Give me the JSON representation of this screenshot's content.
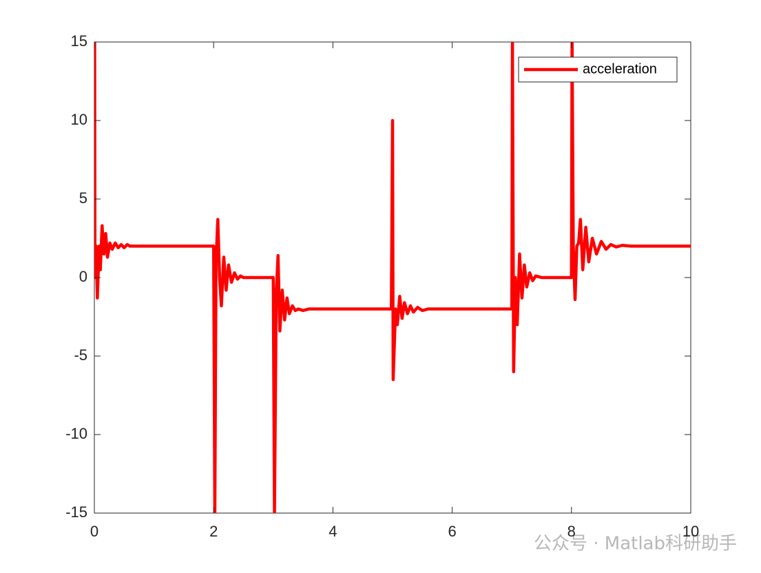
{
  "chart_data": {
    "type": "line",
    "x": [
      0,
      0.005,
      0.01,
      0.03,
      0.05,
      0.08,
      0.1,
      0.13,
      0.16,
      0.19,
      0.22,
      0.26,
      0.3,
      0.35,
      0.4,
      0.45,
      0.5,
      0.55,
      0.6,
      2.0,
      2.02,
      2.04,
      2.07,
      2.1,
      2.13,
      2.17,
      2.21,
      2.25,
      2.3,
      2.35,
      2.4,
      2.45,
      2.5,
      3.0,
      3.02,
      3.05,
      3.08,
      3.11,
      3.15,
      3.19,
      3.23,
      3.27,
      3.32,
      3.37,
      3.42,
      3.5,
      3.6,
      4.98,
      5.0,
      5.01,
      5.05,
      5.08,
      5.12,
      5.16,
      5.2,
      5.25,
      5.3,
      5.35,
      5.42,
      5.5,
      5.6,
      7.0,
      7.01,
      7.03,
      7.06,
      7.09,
      7.13,
      7.17,
      7.21,
      7.25,
      7.3,
      7.35,
      7.4,
      7.5,
      8.0,
      8.01,
      8.03,
      8.06,
      8.09,
      8.12,
      8.15,
      8.19,
      8.24,
      8.29,
      8.35,
      8.42,
      8.5,
      8.58,
      8.66,
      8.75,
      8.85,
      9.0,
      10.0
    ],
    "series": [
      {
        "name": "acceleration",
        "color": "#ff0000",
        "values": [
          0,
          15,
          0,
          2,
          -1.3,
          2,
          0.5,
          3.3,
          1.5,
          2.8,
          1.3,
          2.2,
          1.8,
          2.2,
          1.9,
          2.1,
          1.9,
          2.1,
          2,
          2,
          -15,
          1,
          3.7,
          0,
          -1.8,
          1.3,
          -0.8,
          0.8,
          -0.3,
          0.3,
          -0.1,
          0.1,
          0,
          0,
          -15,
          -1,
          1.4,
          -3.4,
          -0.8,
          -2.7,
          -1.3,
          -2.3,
          -1.8,
          -2.1,
          -2,
          -2.1,
          -2,
          -2,
          10,
          -6.5,
          -2,
          -3,
          -1.2,
          -2.6,
          -1.6,
          -2.3,
          -1.8,
          -2.2,
          -1.9,
          -2.1,
          -2,
          -2,
          15,
          -6,
          0,
          -3,
          1.5,
          -1.3,
          0.8,
          -0.6,
          0.3,
          -0.2,
          0.1,
          0,
          0,
          15,
          2,
          -1.4,
          2,
          2.2,
          3.7,
          0.5,
          3.2,
          1,
          2.5,
          1.5,
          2.3,
          1.8,
          2.1,
          1.95,
          2.05,
          2,
          2
        ]
      }
    ],
    "xlim": [
      0,
      10
    ],
    "xticks": [
      0,
      2,
      4,
      6,
      8,
      10
    ],
    "ylim": [
      -15,
      15
    ],
    "yticks": [
      -15,
      -10,
      -5,
      0,
      5,
      10,
      15
    ],
    "legend": "northeast",
    "watermark": "公众号 · Matlab科研助手"
  }
}
